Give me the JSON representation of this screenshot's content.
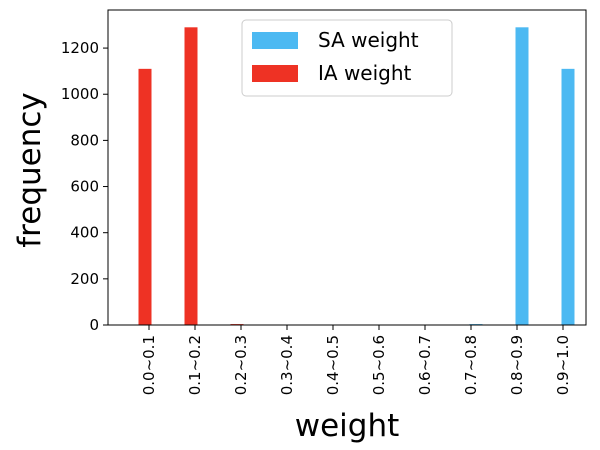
{
  "chart_data": {
    "type": "bar",
    "categories": [
      "0.0~0.1",
      "0.1~0.2",
      "0.2~0.3",
      "0.3~0.4",
      "0.4~0.5",
      "0.5~0.6",
      "0.6~0.7",
      "0.7~0.8",
      "0.8~0.9",
      "0.9~1.0"
    ],
    "series": [
      {
        "name": "SA weight",
        "color": "#4cb9f2",
        "values": [
          0,
          0,
          0,
          0,
          0,
          0,
          0,
          4,
          1290,
          1110
        ]
      },
      {
        "name": "IA weight",
        "color": "#ee3224",
        "values": [
          1110,
          1290,
          4,
          0,
          0,
          0,
          0,
          0,
          0,
          0
        ]
      }
    ],
    "xlabel": "weight",
    "ylabel": "frequency",
    "ylim": [
      0,
      1365
    ],
    "yticks": [
      0,
      200,
      400,
      600,
      800,
      1000,
      1200
    ],
    "grid": false,
    "legend": "top-center"
  }
}
